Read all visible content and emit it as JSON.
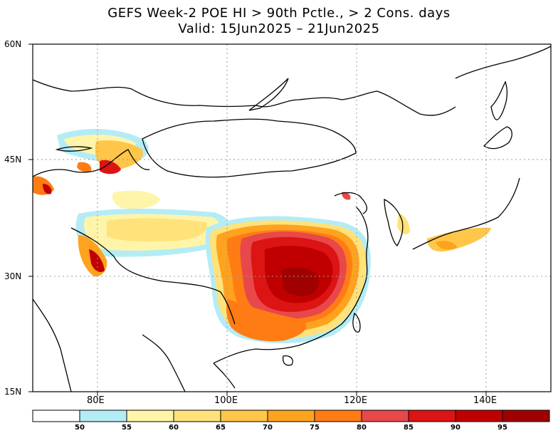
{
  "title": {
    "line1": "GEFS Week-2 POE HI > 90th Pctle., > 2 Cons. days",
    "line2": "Valid: 15Jun2025 – 21Jun2025"
  },
  "axes": {
    "lat_labels": [
      "60N",
      "45N",
      "30N",
      "15N"
    ],
    "lon_labels": [
      "80E",
      "100E",
      "120E",
      "140E"
    ],
    "lon_range": [
      70,
      150
    ],
    "lat_range": [
      15,
      60
    ],
    "grid": "dotted"
  },
  "colorbar": {
    "labels": [
      "50",
      "55",
      "60",
      "65",
      "70",
      "75",
      "80",
      "85",
      "90",
      "95"
    ],
    "colors": [
      "#ffffff",
      "#b4ecf5",
      "#fff5aa",
      "#ffe27a",
      "#ffc64a",
      "#ffa21e",
      "#ff7c14",
      "#e8484a",
      "#dc1414",
      "#c00000",
      "#a00000"
    ]
  },
  "colors": {
    "coast": "#000000",
    "grid": "#999999"
  }
}
